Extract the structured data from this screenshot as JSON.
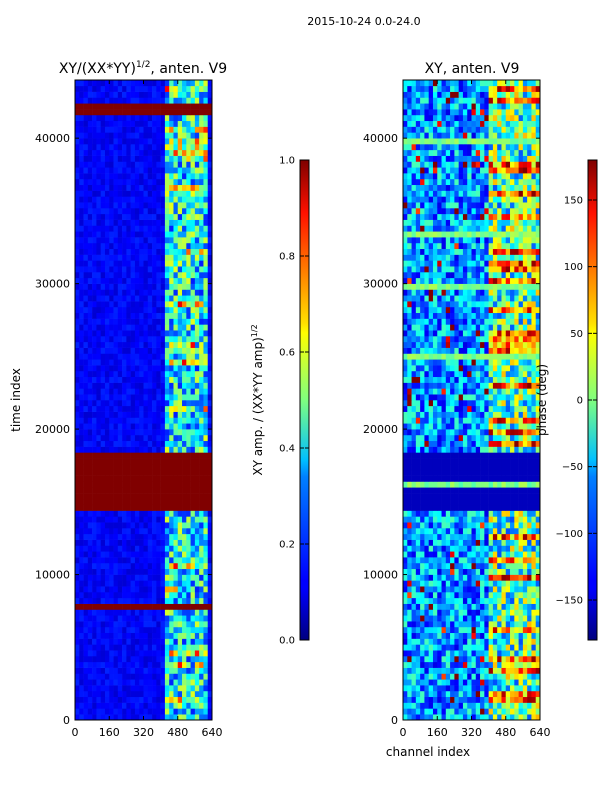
{
  "figure": {
    "suptitle": "2015-10-24 0.0-24.0"
  },
  "chart_data": [
    {
      "type": "heatmap",
      "title": "XY/(XX*YY)$^{1/2}$, anten. V9",
      "title_main": "XY/(XX*YY)",
      "title_exp": "1/2",
      "title_tail": ", anten. V9",
      "xlabel": "",
      "ylabel": "time index",
      "x_range": [
        0,
        640
      ],
      "y_range": [
        0,
        44000
      ],
      "x_ticks": [
        0,
        160,
        320,
        480,
        640
      ],
      "y_ticks": [
        0,
        10000,
        20000,
        30000,
        40000
      ],
      "colormap": "jet",
      "colorbar": {
        "label_main": "XY amp. / (XX*YY amp)",
        "label_exp": "1/2",
        "range": [
          0.0,
          1.0
        ],
        "ticks": [
          "0.0",
          "0.2",
          "0.4",
          "0.6",
          "0.8",
          "1.0"
        ],
        "tick_values": [
          0.0,
          0.2,
          0.4,
          0.6,
          0.8,
          1.0
        ]
      },
      "features": {
        "saturated_time_bands": [
          [
            14300,
            18200
          ],
          [
            41700,
            42300
          ],
          [
            7800,
            8100
          ]
        ],
        "active_channel_band": [
          420,
          620
        ]
      }
    },
    {
      "type": "heatmap",
      "title": "XY, anten. V9",
      "xlabel": "channel index",
      "ylabel": "",
      "x_range": [
        0,
        640
      ],
      "y_range": [
        0,
        44000
      ],
      "x_ticks": [
        0,
        160,
        320,
        480,
        640
      ],
      "y_ticks": [
        0,
        10000,
        20000,
        30000,
        40000
      ],
      "colormap": "jet",
      "colorbar": {
        "label": "phase (deg)",
        "range": [
          -180,
          180
        ],
        "ticks": [
          "−150",
          "−100",
          "−50",
          "0",
          "50",
          "100",
          "150"
        ],
        "tick_values": [
          -150,
          -100,
          -50,
          0,
          50,
          100,
          150
        ]
      },
      "features": {
        "flat_time_band": [
          14300,
          18200
        ],
        "active_channel_band": [
          400,
          640
        ]
      }
    }
  ]
}
